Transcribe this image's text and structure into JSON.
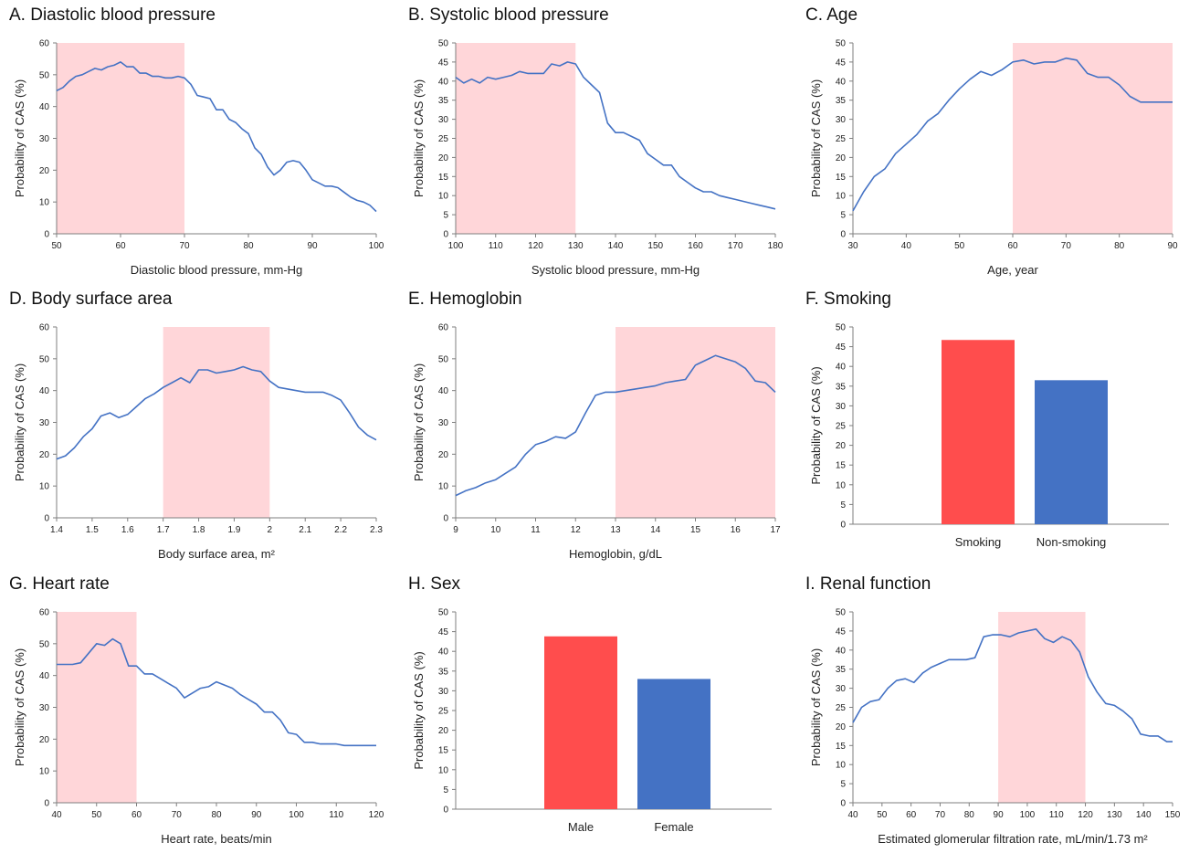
{
  "panels": [
    {
      "id": "A",
      "title": "A. Diastolic blood pressure",
      "type": "line",
      "xlabel": "Diastolic blood pressure, mm-Hg",
      "ylabel": "Probability of CAS (%)",
      "xlim": [
        50,
        100
      ],
      "ylim": [
        0,
        60
      ],
      "xticks": [
        "50",
        "60",
        "70",
        "80",
        "90",
        "100"
      ],
      "yticks": [
        "0",
        "10",
        "20",
        "30",
        "40",
        "50",
        "60"
      ],
      "shade": [
        50,
        70
      ],
      "x": [
        50,
        51,
        52,
        53,
        54,
        55,
        56,
        57,
        58,
        59,
        60,
        61,
        62,
        63,
        64,
        65,
        66,
        67,
        68,
        69,
        70,
        71,
        72,
        73,
        74,
        75,
        76,
        77,
        78,
        79,
        80,
        81,
        82,
        83,
        84,
        85,
        86,
        87,
        88,
        89,
        90,
        91,
        92,
        93,
        94,
        95,
        96,
        97,
        98,
        99,
        100
      ],
      "y": [
        45,
        46,
        48,
        49.5,
        50,
        51,
        52,
        51.5,
        52.5,
        53,
        54,
        52.5,
        52.5,
        50.5,
        50.5,
        49.5,
        49.5,
        49,
        49,
        49.5,
        49,
        47,
        43.5,
        43,
        42.5,
        39,
        39,
        36,
        35,
        33,
        31.5,
        27,
        25,
        21,
        18.5,
        20,
        22.5,
        23,
        22.5,
        20,
        17,
        16,
        15,
        15,
        14.5,
        13,
        11.5,
        10.5,
        10,
        9,
        7
      ]
    },
    {
      "id": "B",
      "title": "B. Systolic blood pressure",
      "type": "line",
      "xlabel": "Systolic blood pressure, mm-Hg",
      "ylabel": "Probability of CAS (%)",
      "xlim": [
        100,
        180
      ],
      "ylim": [
        0,
        50
      ],
      "xticks": [
        "100",
        "110",
        "120",
        "130",
        "140",
        "150",
        "160",
        "170",
        "180"
      ],
      "yticks": [
        "0",
        "5",
        "10",
        "15",
        "20",
        "25",
        "30",
        "35",
        "40",
        "45",
        "50"
      ],
      "shade": [
        100,
        130
      ],
      "x": [
        100,
        102,
        104,
        106,
        108,
        110,
        112,
        114,
        116,
        118,
        120,
        122,
        124,
        126,
        128,
        130,
        132,
        134,
        136,
        138,
        140,
        142,
        144,
        146,
        148,
        150,
        152,
        154,
        156,
        158,
        160,
        162,
        164,
        166,
        168,
        170,
        172,
        174,
        176,
        178,
        180
      ],
      "y": [
        41,
        39.5,
        40.5,
        39.5,
        41,
        40.5,
        41,
        41.5,
        42.5,
        42,
        42,
        42,
        44.5,
        44,
        45,
        44.5,
        41,
        39,
        37,
        29,
        26.5,
        26.5,
        25.5,
        24.5,
        21,
        19.5,
        18,
        18,
        15,
        13.5,
        12,
        11,
        11,
        10,
        9.5,
        9,
        8.5,
        8,
        7.5,
        7,
        6.5
      ]
    },
    {
      "id": "C",
      "title": "C. Age",
      "type": "line",
      "xlabel": "Age, year",
      "ylabel": "Probability of CAS (%)",
      "xlim": [
        30,
        90
      ],
      "ylim": [
        0,
        50
      ],
      "xticks": [
        "30",
        "40",
        "50",
        "60",
        "70",
        "80",
        "90"
      ],
      "yticks": [
        "0",
        "5",
        "10",
        "15",
        "20",
        "25",
        "30",
        "35",
        "40",
        "45",
        "50"
      ],
      "shade": [
        60,
        90
      ],
      "x": [
        30,
        32,
        34,
        36,
        38,
        40,
        42,
        44,
        46,
        48,
        50,
        52,
        54,
        56,
        58,
        60,
        62,
        64,
        66,
        68,
        70,
        72,
        74,
        76,
        78,
        80,
        82,
        84,
        86,
        88,
        90
      ],
      "y": [
        6,
        11,
        15,
        17,
        21,
        23.5,
        26,
        29.5,
        31.5,
        35,
        38,
        40.5,
        42.5,
        41.5,
        43,
        45,
        45.5,
        44.5,
        45,
        45,
        46,
        45.5,
        42,
        41,
        41,
        39,
        36,
        34.5,
        34.5,
        34.5,
        34.5
      ]
    },
    {
      "id": "D",
      "title": "D. Body surface area",
      "type": "line",
      "xlabel": "Body surface area, m²",
      "ylabel": "Probability of CAS (%)",
      "xlim": [
        1.4,
        2.3
      ],
      "ylim": [
        0,
        60
      ],
      "xticks": [
        "1.4",
        "1.5",
        "1.6",
        "1.7",
        "1.8",
        "1.9",
        "2",
        "2.1",
        "2.2",
        "2.3"
      ],
      "yticks": [
        "0",
        "10",
        "20",
        "30",
        "40",
        "50",
        "60"
      ],
      "shade": [
        1.7,
        2.0
      ],
      "x": [
        1.4,
        1.425,
        1.45,
        1.475,
        1.5,
        1.525,
        1.55,
        1.575,
        1.6,
        1.625,
        1.65,
        1.675,
        1.7,
        1.725,
        1.75,
        1.775,
        1.8,
        1.825,
        1.85,
        1.875,
        1.9,
        1.925,
        1.95,
        1.975,
        2.0,
        2.025,
        2.05,
        2.075,
        2.1,
        2.125,
        2.15,
        2.175,
        2.2,
        2.225,
        2.25,
        2.275,
        2.3
      ],
      "y": [
        18.5,
        19.5,
        22,
        25.5,
        28,
        32,
        33,
        31.5,
        32.5,
        35,
        37.5,
        39,
        41,
        42.5,
        44,
        42.5,
        46.5,
        46.5,
        45.5,
        46,
        46.5,
        47.5,
        46.5,
        46,
        43,
        41,
        40.5,
        40,
        39.5,
        39.5,
        39.5,
        38.5,
        37,
        33,
        28.5,
        26,
        24.5
      ]
    },
    {
      "id": "E",
      "title": "E. Hemoglobin",
      "type": "line",
      "xlabel": "Hemoglobin, g/dL",
      "ylabel": "Probability of CAS (%)",
      "xlim": [
        9,
        17
      ],
      "ylim": [
        0,
        60
      ],
      "xticks": [
        "9",
        "10",
        "11",
        "12",
        "13",
        "14",
        "15",
        "16",
        "17"
      ],
      "yticks": [
        "0",
        "10",
        "20",
        "30",
        "40",
        "50",
        "60"
      ],
      "shade": [
        13,
        17
      ],
      "x": [
        9,
        9.25,
        9.5,
        9.75,
        10,
        10.25,
        10.5,
        10.75,
        11,
        11.25,
        11.5,
        11.75,
        12,
        12.25,
        12.5,
        12.75,
        13,
        13.25,
        13.5,
        13.75,
        14,
        14.25,
        14.5,
        14.75,
        15,
        15.25,
        15.5,
        15.75,
        16,
        16.25,
        16.5,
        16.75,
        17
      ],
      "y": [
        7,
        8.5,
        9.5,
        11,
        12,
        14,
        16,
        20,
        23,
        24,
        25.5,
        25,
        27,
        33,
        38.5,
        39.5,
        39.5,
        40,
        40.5,
        41,
        41.5,
        42.5,
        43,
        43.5,
        48,
        49.5,
        51,
        50,
        49,
        47,
        43,
        42.5,
        39.5
      ]
    },
    {
      "id": "F",
      "title": "F. Smoking",
      "type": "bar",
      "xlabel": "",
      "ylabel": "Probability of CAS (%)",
      "ylim": [
        0,
        50
      ],
      "yticks": [
        "0",
        "5",
        "10",
        "15",
        "20",
        "25",
        "30",
        "35",
        "40",
        "45",
        "50"
      ],
      "categories": [
        "Smoking",
        "Non-smoking"
      ],
      "values": [
        46.7,
        36.5
      ],
      "colors": [
        "#ff4d4d",
        "#4472c4"
      ]
    },
    {
      "id": "G",
      "title": "G. Heart rate",
      "type": "line",
      "xlabel": "Heart rate, beats/min",
      "ylabel": "Probability of CAS (%)",
      "xlim": [
        40,
        120
      ],
      "ylim": [
        0,
        60
      ],
      "xticks": [
        "40",
        "50",
        "60",
        "70",
        "80",
        "90",
        "100",
        "110",
        "120"
      ],
      "yticks": [
        "0",
        "10",
        "20",
        "30",
        "40",
        "50",
        "60"
      ],
      "shade": [
        40,
        60
      ],
      "x": [
        40,
        42,
        44,
        46,
        48,
        50,
        52,
        54,
        56,
        58,
        60,
        62,
        64,
        66,
        68,
        70,
        72,
        74,
        76,
        78,
        80,
        82,
        84,
        86,
        88,
        90,
        92,
        94,
        96,
        98,
        100,
        102,
        104,
        106,
        108,
        110,
        112,
        114,
        116,
        118,
        120
      ],
      "y": [
        43.5,
        43.5,
        43.5,
        44,
        47,
        50,
        49.5,
        51.5,
        50,
        43,
        43,
        40.5,
        40.5,
        39,
        37.5,
        36,
        33,
        34.5,
        36,
        36.5,
        38,
        37,
        36,
        34,
        32.5,
        31,
        28.5,
        28.5,
        26,
        22,
        21.5,
        19,
        19,
        18.5,
        18.5,
        18.5,
        18,
        18,
        18,
        18,
        18
      ]
    },
    {
      "id": "H",
      "title": "H. Sex",
      "type": "bar",
      "xlabel": "",
      "ylabel": "Probability of CAS (%)",
      "ylim": [
        0,
        50
      ],
      "yticks": [
        "0",
        "5",
        "10",
        "15",
        "20",
        "25",
        "30",
        "35",
        "40",
        "45",
        "50"
      ],
      "categories": [
        "Male",
        "Female"
      ],
      "values": [
        43.8,
        33
      ],
      "colors": [
        "#ff4d4d",
        "#4472c4"
      ]
    },
    {
      "id": "I",
      "title": "I. Renal function",
      "type": "line",
      "xlabel": "Estimated glomerular filtration rate, mL/min/1.73 m²",
      "ylabel": "Probability of CAS (%)",
      "xlim": [
        40,
        150
      ],
      "ylim": [
        0,
        50
      ],
      "xticks": [
        "40",
        "50",
        "60",
        "70",
        "80",
        "90",
        "100",
        "110",
        "120",
        "130",
        "140",
        "150"
      ],
      "yticks": [
        "0",
        "5",
        "10",
        "15",
        "20",
        "25",
        "30",
        "35",
        "40",
        "45",
        "50"
      ],
      "shade": [
        90,
        120
      ],
      "x": [
        40,
        43,
        46,
        49,
        52,
        55,
        58,
        61,
        64,
        67,
        70,
        73,
        76,
        79,
        82,
        85,
        88,
        91,
        94,
        97,
        100,
        103,
        106,
        109,
        112,
        115,
        118,
        121,
        124,
        127,
        130,
        133,
        136,
        139,
        142,
        145,
        148,
        150
      ],
      "y": [
        21,
        25,
        26.5,
        27,
        30,
        32,
        32.5,
        31.5,
        34,
        35.5,
        36.5,
        37.5,
        37.5,
        37.5,
        38,
        43.5,
        44,
        44,
        43.5,
        44.5,
        45,
        45.5,
        43,
        42,
        43.5,
        42.5,
        39.5,
        33,
        29,
        26,
        25.5,
        24,
        22,
        18,
        17.5,
        17.5,
        16,
        16
      ]
    }
  ],
  "style": {
    "line_color": "#4472c4",
    "shade_color": "#ffd6d9",
    "axis_color": "#7f7f7f"
  }
}
